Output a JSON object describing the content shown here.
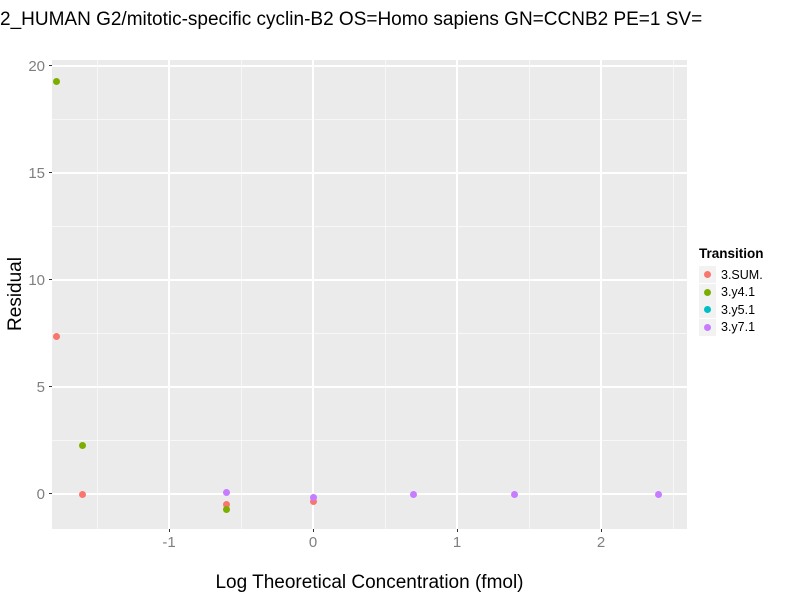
{
  "title": "2_HUMAN G2/mitotic-specific cyclin-B2 OS=Homo sapiens GN=CCNB2 PE=1 SV=",
  "axes": {
    "x_label": "Log Theoretical Concentration (fmol)",
    "y_label": "Residual"
  },
  "legend": {
    "title": "Transition",
    "items": [
      {
        "label": "3.SUM.",
        "color": "#F8766D"
      },
      {
        "label": "3.y4.1",
        "color": "#7CAE00"
      },
      {
        "label": "3.y5.1",
        "color": "#00BFC4"
      },
      {
        "label": "3.y7.1",
        "color": "#C77CFF"
      }
    ]
  },
  "colors": {
    "panel_background": "#EBEBEB",
    "grid_major": "#FFFFFF",
    "grid_minor": "#F7F7F7",
    "tick_text": "#7F7F7F",
    "legend_key_background": "#F2F2F2"
  },
  "chart_data": {
    "type": "scatter",
    "title": "2_HUMAN G2/mitotic-specific cyclin-B2 OS=Homo sapiens GN=CCNB2 PE=1 SV=",
    "xlabel": "Log Theoretical Concentration (fmol)",
    "ylabel": "Residual",
    "xlim": [
      -1.8125,
      2.597
    ],
    "ylim": [
      -1.64,
      20.28
    ],
    "x_ticks": [
      -1,
      0,
      1,
      2
    ],
    "y_ticks": [
      0,
      5,
      10,
      15,
      20
    ],
    "x_minor_gridlines": [
      -1.5,
      -0.5,
      0.5,
      1.5,
      2.5
    ],
    "y_minor_gridlines": [
      2.5,
      7.5,
      12.5,
      17.5
    ],
    "grid": true,
    "legend_position": "right",
    "legend_title": "Transition",
    "series": [
      {
        "name": "3.SUM.",
        "color": "#F8766D",
        "points": [
          [
            -1.78,
            7.35
          ],
          [
            -1.6,
            -0.05
          ],
          [
            -0.6,
            -0.48
          ],
          [
            0.0,
            -0.35
          ]
        ]
      },
      {
        "name": "3.y4.1",
        "color": "#7CAE00",
        "points": [
          [
            -1.78,
            19.27
          ],
          [
            -1.6,
            2.28
          ],
          [
            -0.6,
            -0.71
          ]
        ]
      },
      {
        "name": "3.y5.1",
        "color": "#00BFC4",
        "points": []
      },
      {
        "name": "3.y7.1",
        "color": "#C77CFF",
        "points": [
          [
            -0.6,
            0.05
          ],
          [
            0.0,
            -0.15
          ],
          [
            0.7,
            -0.05
          ],
          [
            1.4,
            -0.05
          ],
          [
            2.4,
            -0.05
          ]
        ]
      }
    ]
  }
}
